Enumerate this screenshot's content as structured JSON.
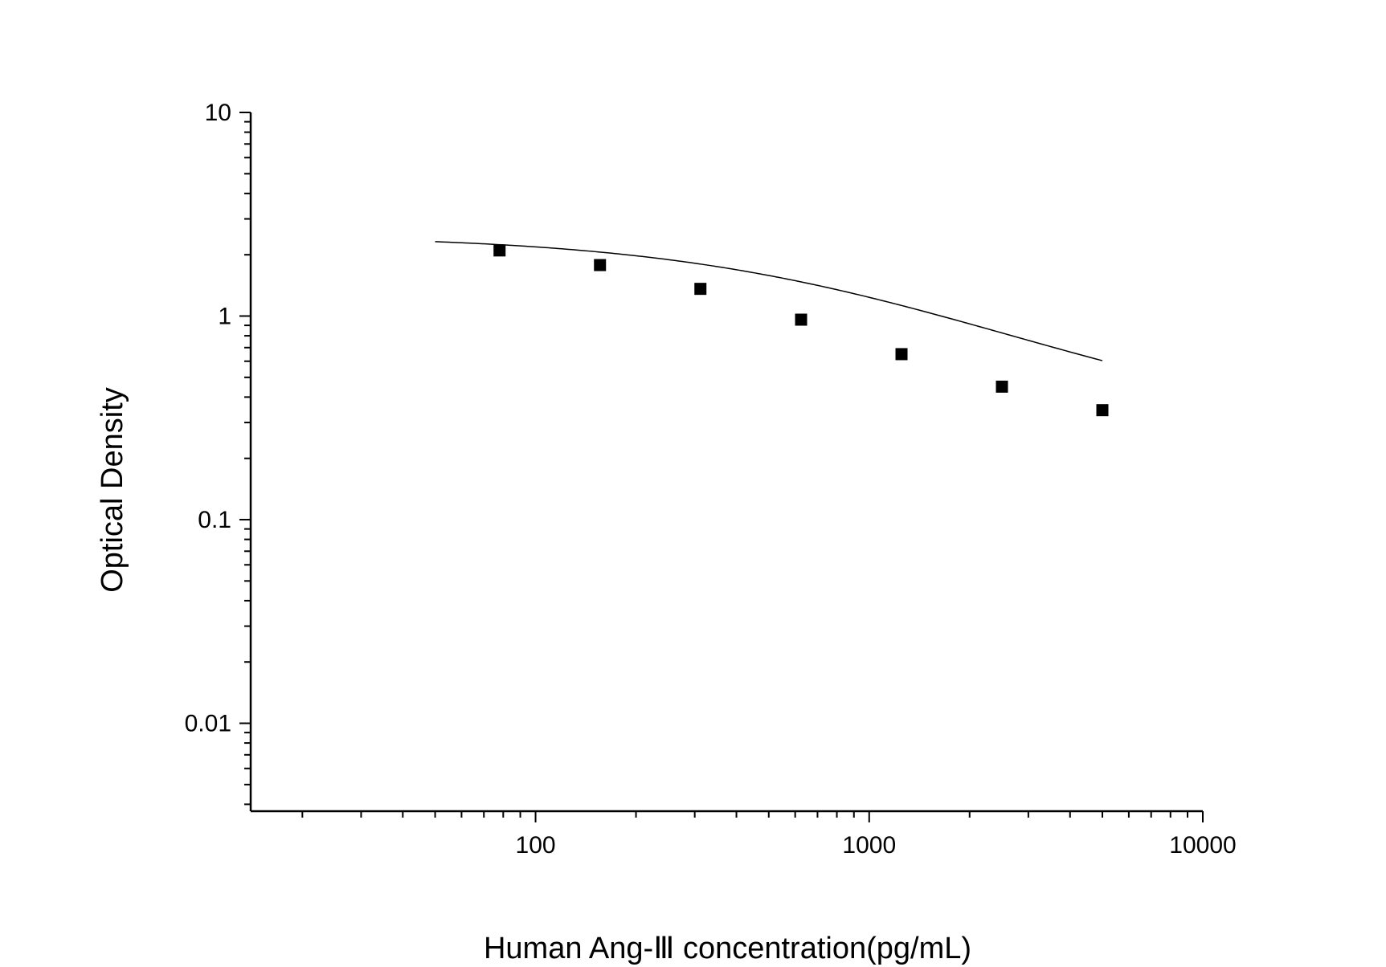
{
  "chart_data": {
    "type": "scatter",
    "title": "",
    "xlabel": "Human Ang-Ⅲ concentration(pg/mL)",
    "ylabel": "Optical Density",
    "xscale": "log",
    "yscale": "log",
    "xlim": [
      14,
      10000
    ],
    "ylim": [
      0.0037,
      10
    ],
    "x_tick_labels": [
      "100",
      "1000",
      "10000"
    ],
    "y_tick_labels": [
      "10",
      "1",
      "0.1",
      "0.01"
    ],
    "grid": false,
    "legend": "none",
    "series": [
      {
        "type": "scatter",
        "marker": "square",
        "color": "#000000",
        "x": [
          78,
          156,
          312,
          625,
          1250,
          2500,
          5000
        ],
        "y": [
          2.1,
          1.78,
          1.36,
          0.96,
          0.65,
          0.45,
          0.345
        ]
      },
      {
        "type": "line",
        "color": "#000000",
        "fit": "4PL",
        "x_range": [
          50,
          5000
        ],
        "params": {
          "top": 2.5,
          "bottom": 0.26,
          "ec50": 750,
          "hill": 0.9
        }
      }
    ]
  }
}
